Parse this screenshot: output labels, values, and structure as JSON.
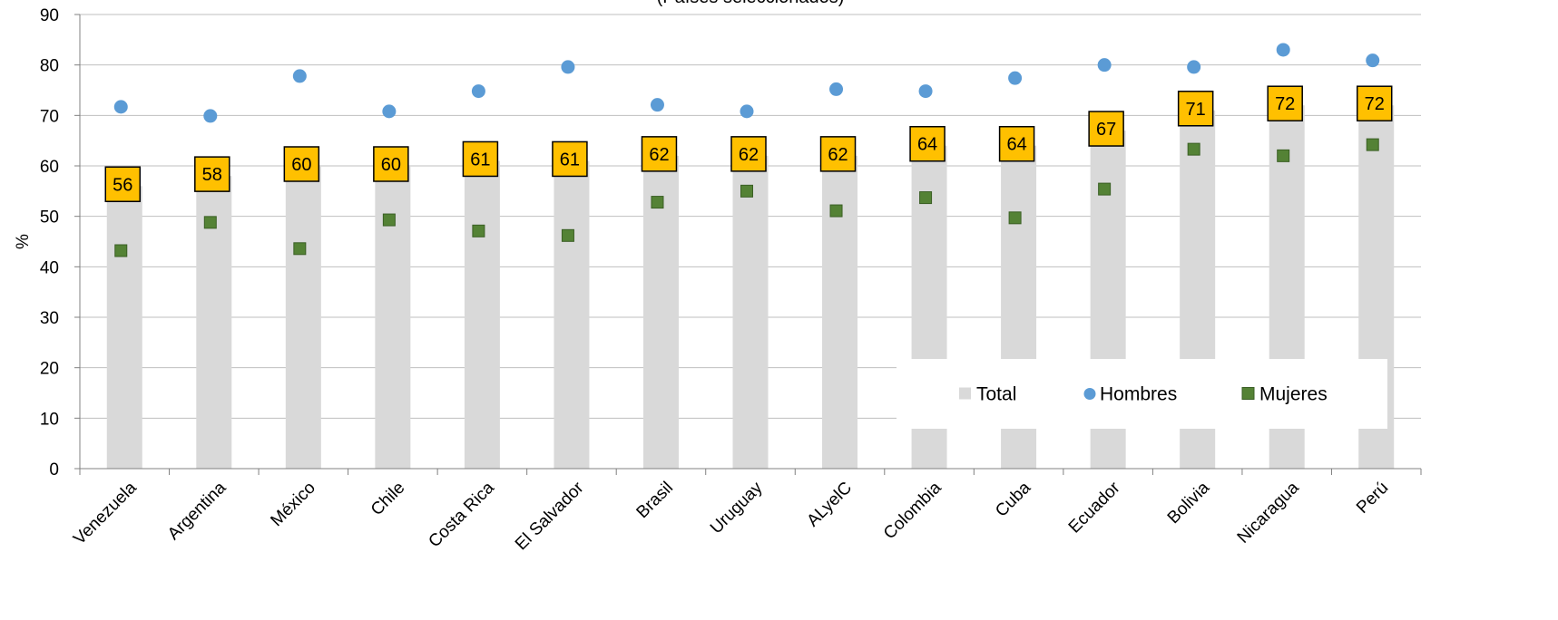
{
  "chart_data": {
    "type": "bar",
    "subtitle": "(Países seleccionados)",
    "ylabel": "%",
    "ylim": [
      0,
      90
    ],
    "yticks": [
      0,
      10,
      20,
      30,
      40,
      50,
      60,
      70,
      80,
      90
    ],
    "grid": true,
    "legend_position": "bottom-right",
    "categories": [
      "Venezuela",
      "Argentina",
      "México",
      "Chile",
      "Costa Rica",
      "El Salvador",
      "Brasil",
      "Uruguay",
      "ALyelC",
      "Colombia",
      "Cuba",
      "Ecuador",
      "Bolivia",
      "Nicaragua",
      "Perú"
    ],
    "series": [
      {
        "name": "Total",
        "type": "bar",
        "color": "#d9d9d9",
        "values": [
          56,
          58,
          60,
          60,
          61,
          61,
          62,
          62,
          62,
          64,
          64,
          67,
          71,
          72,
          72
        ],
        "labels": [
          "56",
          "58",
          "60",
          "60",
          "61",
          "61",
          "62",
          "62",
          "62",
          "64",
          "64",
          "67",
          "71",
          "72",
          "72"
        ]
      },
      {
        "name": "Hombres",
        "type": "scatter",
        "marker": "circle",
        "color": "#5b9bd5",
        "values": [
          71.7,
          69.9,
          77.8,
          70.8,
          74.8,
          79.6,
          72.1,
          70.8,
          75.2,
          74.8,
          77.4,
          80.0,
          79.6,
          83.0,
          80.9
        ]
      },
      {
        "name": "Mujeres",
        "type": "scatter",
        "marker": "square",
        "color": "#548235",
        "values": [
          43.2,
          48.8,
          43.6,
          49.3,
          47.1,
          46.2,
          52.8,
          55.0,
          51.1,
          53.7,
          49.7,
          55.4,
          63.3,
          62.0,
          64.2
        ]
      }
    ],
    "label_box_color": "#ffc000"
  }
}
